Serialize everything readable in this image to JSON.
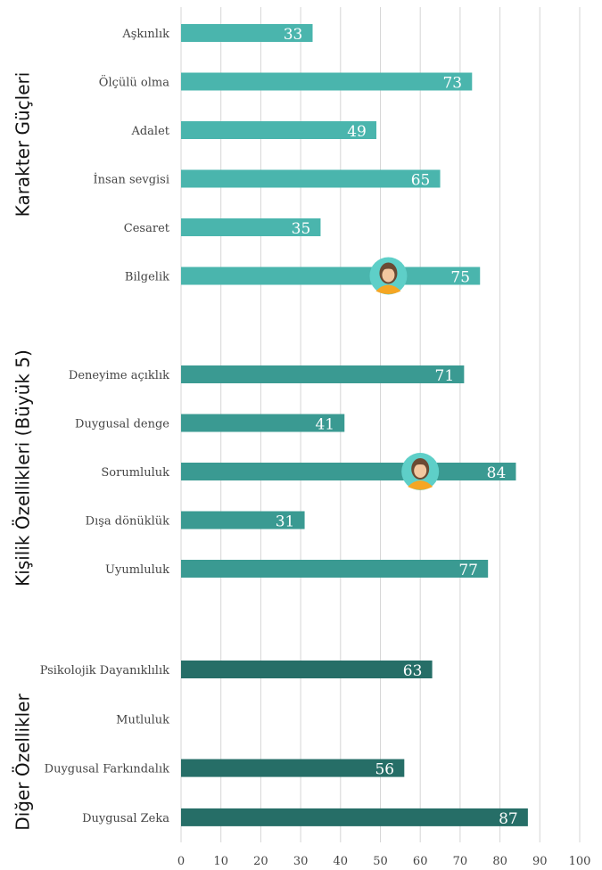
{
  "chart_data": {
    "type": "bar",
    "orientation": "horizontal",
    "xlim": [
      0,
      100
    ],
    "xticks": [
      0,
      10,
      20,
      30,
      40,
      50,
      60,
      70,
      80,
      90,
      100
    ],
    "grid": true,
    "groups": [
      {
        "name": "Karakter Güçleri",
        "color": "#4ab5ad",
        "categories": [
          "Aşkınlık",
          "Ölçülü olma",
          "Adalet",
          "İnsan sevgisi",
          "Cesaret",
          "Bilgelik"
        ],
        "values": [
          33,
          73,
          49,
          65,
          35,
          75
        ],
        "avatar_on": "Bilgelik",
        "avatar_value": 52
      },
      {
        "name": "Kişilik Özellikleri (Büyük 5)",
        "color": "#3a9a92",
        "categories": [
          "Deneyime açıklık",
          "Duygusal denge",
          "Sorumluluk",
          "Dışa dönüklük",
          "Uyumluluk"
        ],
        "values": [
          71,
          41,
          84,
          31,
          77
        ],
        "avatar_on": "Sorumluluk",
        "avatar_value": 60
      },
      {
        "name": "Diğer Özellikler",
        "color": "#266e67",
        "categories": [
          "Psikolojik Dayanıklılık",
          "Mutluluk",
          "Duygusal Farkındalık",
          "Duygusal Zeka"
        ],
        "values": [
          63,
          null,
          56,
          87
        ]
      }
    ],
    "icons": [
      "avatar-icon"
    ],
    "avatar_colors": {
      "circle": "#5ecfc8",
      "hair": "#6b4a33",
      "face": "#f3c8a0",
      "shirt": "#f5a623"
    }
  }
}
